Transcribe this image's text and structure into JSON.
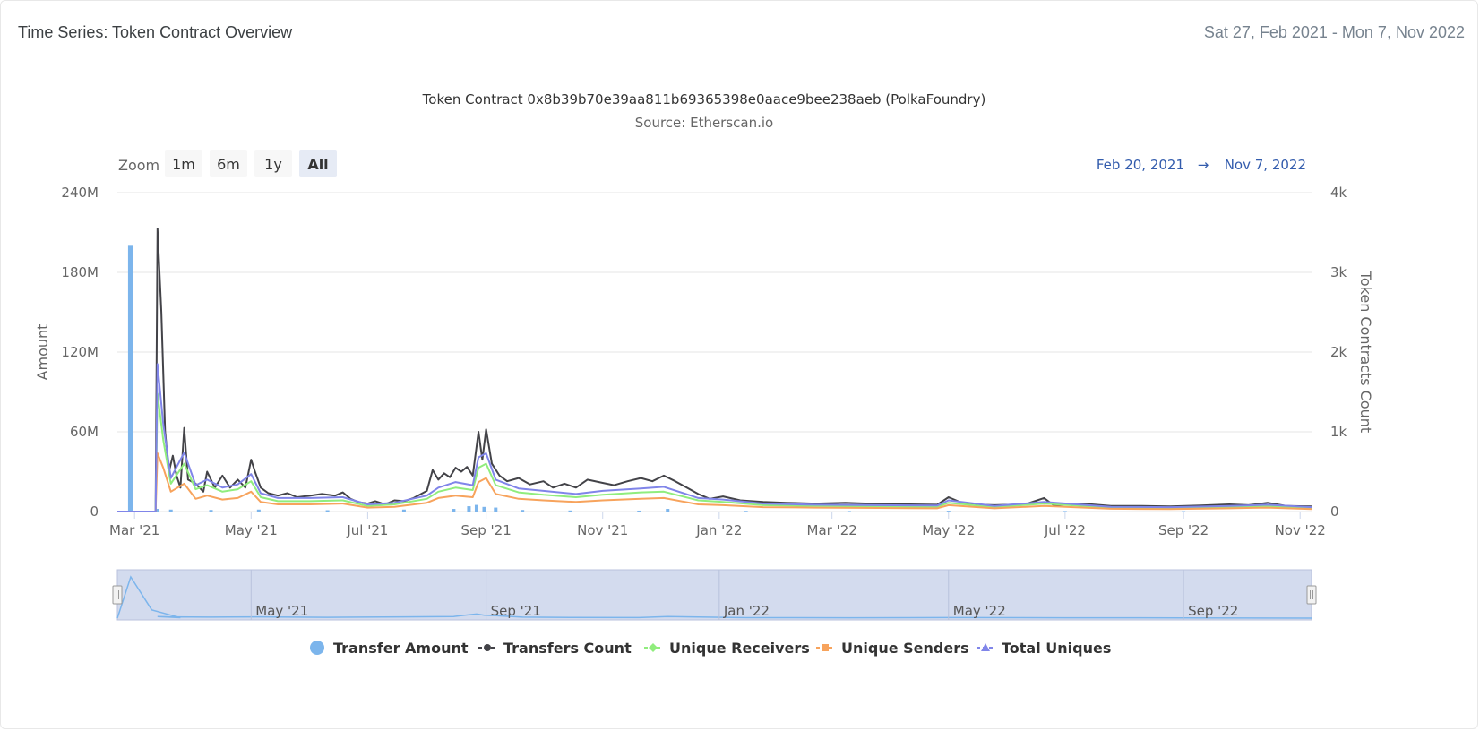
{
  "header": {
    "title": "Time Series: Token Contract Overview",
    "range": "Sat 27, Feb 2021 - Mon 7, Nov 2022"
  },
  "zoom": {
    "label": "Zoom",
    "buttons": [
      "1m",
      "6m",
      "1y",
      "All"
    ],
    "active": "All"
  },
  "range_selector": {
    "from": "Feb 20, 2021",
    "arrow": "→",
    "to": "Nov 7, 2022"
  },
  "navigator": {
    "labels": [
      "May '21",
      "Sep '21",
      "Jan '22",
      "May '22",
      "Sep '22"
    ]
  },
  "colors": {
    "transfer_amount": "#7cb5ec",
    "transfers_count": "#434348",
    "unique_receivers": "#90ed7d",
    "unique_senders": "#f7a35c",
    "total_uniques": "#8085e9",
    "navigator_fill": "#d3dbee"
  },
  "chart_data": {
    "type": "line",
    "title": "Token Contract 0x8b39b70e39aa811b69365398e0aace9bee238aeb (PolkaFoundry)",
    "subtitle": "Source: Etherscan.io",
    "x_range": [
      "2021-02-20",
      "2022-11-07"
    ],
    "x_ticks": [
      {
        "date": "2021-03-01",
        "label": "Mar '21"
      },
      {
        "date": "2021-05-01",
        "label": "May '21"
      },
      {
        "date": "2021-07-01",
        "label": "Jul '21"
      },
      {
        "date": "2021-09-01",
        "label": "Sep '21"
      },
      {
        "date": "2021-11-01",
        "label": "Nov '21"
      },
      {
        "date": "2022-01-01",
        "label": "Jan '22"
      },
      {
        "date": "2022-03-01",
        "label": "Mar '22"
      },
      {
        "date": "2022-05-01",
        "label": "May '22"
      },
      {
        "date": "2022-07-01",
        "label": "Jul '22"
      },
      {
        "date": "2022-09-01",
        "label": "Sep '22"
      },
      {
        "date": "2022-11-01",
        "label": "Nov '22"
      }
    ],
    "y_left": {
      "title": "Amount",
      "range": [
        0,
        240000000
      ],
      "ticks": [
        0,
        60000000,
        120000000,
        180000000,
        240000000
      ],
      "tick_labels": [
        "0",
        "60M",
        "120M",
        "180M",
        "240M"
      ]
    },
    "y_right": {
      "title": "Token Contracts Count",
      "range": [
        0,
        4000
      ],
      "ticks": [
        0,
        1000,
        2000,
        3000,
        4000
      ],
      "tick_labels": [
        "0",
        "1k",
        "2k",
        "3k",
        "4k"
      ]
    },
    "grid": true,
    "legend_position": "bottom-center",
    "series": [
      {
        "name": "Transfer Amount",
        "type": "column",
        "axis": "left",
        "color": "#7cb5ec",
        "points": [
          [
            "2021-02-27",
            200000000
          ],
          [
            "2021-03-13",
            2000000
          ],
          [
            "2021-03-20",
            1500000
          ],
          [
            "2021-04-10",
            1200000
          ],
          [
            "2021-05-05",
            1500000
          ],
          [
            "2021-06-10",
            1000000
          ],
          [
            "2021-07-20",
            1500000
          ],
          [
            "2021-08-15",
            2000000
          ],
          [
            "2021-08-23",
            4000000
          ],
          [
            "2021-08-27",
            5000000
          ],
          [
            "2021-08-31",
            3500000
          ],
          [
            "2021-09-06",
            3000000
          ],
          [
            "2021-09-20",
            1200000
          ],
          [
            "2021-10-15",
            800000
          ],
          [
            "2021-11-20",
            700000
          ],
          [
            "2021-12-05",
            2000000
          ],
          [
            "2022-01-15",
            500000
          ],
          [
            "2022-03-10",
            400000
          ],
          [
            "2022-05-01",
            600000
          ],
          [
            "2022-07-01",
            400000
          ],
          [
            "2022-09-01",
            300000
          ]
        ]
      },
      {
        "name": "Transfers Count",
        "type": "line",
        "axis": "right",
        "color": "#434348",
        "points": [
          [
            "2021-02-20",
            0
          ],
          [
            "2021-03-12",
            0
          ],
          [
            "2021-03-13",
            3550
          ],
          [
            "2021-03-15",
            2500
          ],
          [
            "2021-03-17",
            1000
          ],
          [
            "2021-03-19",
            500
          ],
          [
            "2021-03-21",
            700
          ],
          [
            "2021-03-23",
            450
          ],
          [
            "2021-03-25",
            300
          ],
          [
            "2021-03-27",
            1050
          ],
          [
            "2021-03-29",
            400
          ],
          [
            "2021-04-02",
            350
          ],
          [
            "2021-04-06",
            250
          ],
          [
            "2021-04-08",
            500
          ],
          [
            "2021-04-12",
            300
          ],
          [
            "2021-04-16",
            450
          ],
          [
            "2021-04-20",
            300
          ],
          [
            "2021-04-24",
            400
          ],
          [
            "2021-04-28",
            300
          ],
          [
            "2021-05-01",
            650
          ],
          [
            "2021-05-03",
            500
          ],
          [
            "2021-05-06",
            300
          ],
          [
            "2021-05-10",
            230
          ],
          [
            "2021-05-15",
            200
          ],
          [
            "2021-05-20",
            230
          ],
          [
            "2021-05-25",
            180
          ],
          [
            "2021-06-01",
            200
          ],
          [
            "2021-06-07",
            220
          ],
          [
            "2021-06-14",
            200
          ],
          [
            "2021-06-18",
            240
          ],
          [
            "2021-06-22",
            160
          ],
          [
            "2021-06-26",
            120
          ],
          [
            "2021-07-01",
            100
          ],
          [
            "2021-07-05",
            130
          ],
          [
            "2021-07-10",
            90
          ],
          [
            "2021-07-15",
            140
          ],
          [
            "2021-07-20",
            130
          ],
          [
            "2021-07-25",
            170
          ],
          [
            "2021-08-01",
            260
          ],
          [
            "2021-08-04",
            520
          ],
          [
            "2021-08-07",
            400
          ],
          [
            "2021-08-10",
            480
          ],
          [
            "2021-08-13",
            430
          ],
          [
            "2021-08-16",
            550
          ],
          [
            "2021-08-19",
            500
          ],
          [
            "2021-08-22",
            560
          ],
          [
            "2021-08-25",
            450
          ],
          [
            "2021-08-28",
            1000
          ],
          [
            "2021-08-30",
            650
          ],
          [
            "2021-09-01",
            1030
          ],
          [
            "2021-09-04",
            600
          ],
          [
            "2021-09-08",
            450
          ],
          [
            "2021-09-12",
            380
          ],
          [
            "2021-09-18",
            420
          ],
          [
            "2021-09-24",
            340
          ],
          [
            "2021-10-01",
            380
          ],
          [
            "2021-10-06",
            300
          ],
          [
            "2021-10-12",
            350
          ],
          [
            "2021-10-18",
            300
          ],
          [
            "2021-10-24",
            400
          ],
          [
            "2021-11-01",
            360
          ],
          [
            "2021-11-07",
            330
          ],
          [
            "2021-11-14",
            380
          ],
          [
            "2021-11-21",
            420
          ],
          [
            "2021-11-27",
            380
          ],
          [
            "2021-12-03",
            450
          ],
          [
            "2021-12-09",
            380
          ],
          [
            "2021-12-15",
            300
          ],
          [
            "2021-12-21",
            220
          ],
          [
            "2021-12-27",
            160
          ],
          [
            "2022-01-03",
            190
          ],
          [
            "2022-01-12",
            140
          ],
          [
            "2022-01-24",
            120
          ],
          [
            "2022-02-05",
            110
          ],
          [
            "2022-02-20",
            100
          ],
          [
            "2022-03-08",
            110
          ],
          [
            "2022-03-25",
            95
          ],
          [
            "2022-04-10",
            90
          ],
          [
            "2022-04-25",
            85
          ],
          [
            "2022-05-01",
            180
          ],
          [
            "2022-05-10",
            90
          ],
          [
            "2022-05-25",
            80
          ],
          [
            "2022-06-10",
            90
          ],
          [
            "2022-06-20",
            170
          ],
          [
            "2022-06-25",
            80
          ],
          [
            "2022-07-10",
            100
          ],
          [
            "2022-07-25",
            70
          ],
          [
            "2022-08-10",
            70
          ],
          [
            "2022-08-25",
            65
          ],
          [
            "2022-09-10",
            75
          ],
          [
            "2022-09-25",
            90
          ],
          [
            "2022-10-05",
            80
          ],
          [
            "2022-10-15",
            110
          ],
          [
            "2022-10-25",
            70
          ],
          [
            "2022-11-07",
            65
          ]
        ]
      },
      {
        "name": "Unique Receivers",
        "type": "line",
        "axis": "right",
        "color": "#90ed7d",
        "points": [
          [
            "2021-02-20",
            0
          ],
          [
            "2021-03-12",
            0
          ],
          [
            "2021-03-13",
            1480
          ],
          [
            "2021-03-16",
            900
          ],
          [
            "2021-03-20",
            350
          ],
          [
            "2021-03-27",
            600
          ],
          [
            "2021-04-02",
            280
          ],
          [
            "2021-04-08",
            330
          ],
          [
            "2021-04-16",
            250
          ],
          [
            "2021-04-24",
            280
          ],
          [
            "2021-05-01",
            380
          ],
          [
            "2021-05-06",
            180
          ],
          [
            "2021-05-15",
            130
          ],
          [
            "2021-06-01",
            130
          ],
          [
            "2021-06-18",
            140
          ],
          [
            "2021-07-01",
            70
          ],
          [
            "2021-07-15",
            90
          ],
          [
            "2021-08-01",
            160
          ],
          [
            "2021-08-07",
            250
          ],
          [
            "2021-08-16",
            300
          ],
          [
            "2021-08-25",
            270
          ],
          [
            "2021-08-28",
            550
          ],
          [
            "2021-09-01",
            600
          ],
          [
            "2021-09-06",
            330
          ],
          [
            "2021-09-18",
            240
          ],
          [
            "2021-10-01",
            210
          ],
          [
            "2021-10-18",
            180
          ],
          [
            "2021-11-01",
            210
          ],
          [
            "2021-11-21",
            240
          ],
          [
            "2021-12-03",
            250
          ],
          [
            "2021-12-21",
            140
          ],
          [
            "2022-01-03",
            120
          ],
          [
            "2022-01-24",
            80
          ],
          [
            "2022-02-20",
            70
          ],
          [
            "2022-03-25",
            65
          ],
          [
            "2022-04-25",
            60
          ],
          [
            "2022-05-01",
            110
          ],
          [
            "2022-05-25",
            55
          ],
          [
            "2022-06-20",
            100
          ],
          [
            "2022-07-25",
            50
          ],
          [
            "2022-08-25",
            45
          ],
          [
            "2022-09-25",
            60
          ],
          [
            "2022-10-15",
            70
          ],
          [
            "2022-11-07",
            45
          ]
        ]
      },
      {
        "name": "Unique Senders",
        "type": "line",
        "axis": "right",
        "color": "#f7a35c",
        "points": [
          [
            "2021-02-20",
            0
          ],
          [
            "2021-03-12",
            0
          ],
          [
            "2021-03-13",
            730
          ],
          [
            "2021-03-16",
            550
          ],
          [
            "2021-03-20",
            250
          ],
          [
            "2021-03-27",
            350
          ],
          [
            "2021-04-02",
            160
          ],
          [
            "2021-04-08",
            200
          ],
          [
            "2021-04-16",
            150
          ],
          [
            "2021-04-24",
            170
          ],
          [
            "2021-05-01",
            250
          ],
          [
            "2021-05-06",
            120
          ],
          [
            "2021-05-15",
            90
          ],
          [
            "2021-06-01",
            90
          ],
          [
            "2021-06-18",
            100
          ],
          [
            "2021-07-01",
            50
          ],
          [
            "2021-07-15",
            60
          ],
          [
            "2021-08-01",
            110
          ],
          [
            "2021-08-07",
            170
          ],
          [
            "2021-08-16",
            200
          ],
          [
            "2021-08-25",
            180
          ],
          [
            "2021-08-28",
            370
          ],
          [
            "2021-09-01",
            420
          ],
          [
            "2021-09-06",
            220
          ],
          [
            "2021-09-18",
            160
          ],
          [
            "2021-10-01",
            140
          ],
          [
            "2021-10-18",
            120
          ],
          [
            "2021-11-01",
            140
          ],
          [
            "2021-11-21",
            160
          ],
          [
            "2021-12-03",
            170
          ],
          [
            "2021-12-21",
            90
          ],
          [
            "2022-01-03",
            80
          ],
          [
            "2022-01-24",
            55
          ],
          [
            "2022-02-20",
            50
          ],
          [
            "2022-03-25",
            45
          ],
          [
            "2022-04-25",
            40
          ],
          [
            "2022-05-01",
            80
          ],
          [
            "2022-05-25",
            40
          ],
          [
            "2022-06-20",
            70
          ],
          [
            "2022-07-25",
            35
          ],
          [
            "2022-08-25",
            30
          ],
          [
            "2022-09-25",
            40
          ],
          [
            "2022-10-15",
            50
          ],
          [
            "2022-11-07",
            30
          ]
        ]
      },
      {
        "name": "Total Uniques",
        "type": "line",
        "axis": "right",
        "color": "#8085e9",
        "points": [
          [
            "2021-02-20",
            0
          ],
          [
            "2021-03-12",
            0
          ],
          [
            "2021-03-13",
            1850
          ],
          [
            "2021-03-16",
            1100
          ],
          [
            "2021-03-20",
            420
          ],
          [
            "2021-03-27",
            740
          ],
          [
            "2021-04-02",
            330
          ],
          [
            "2021-04-08",
            400
          ],
          [
            "2021-04-16",
            300
          ],
          [
            "2021-04-24",
            340
          ],
          [
            "2021-05-01",
            470
          ],
          [
            "2021-05-06",
            230
          ],
          [
            "2021-05-15",
            170
          ],
          [
            "2021-06-01",
            170
          ],
          [
            "2021-06-18",
            180
          ],
          [
            "2021-07-01",
            90
          ],
          [
            "2021-07-15",
            110
          ],
          [
            "2021-08-01",
            200
          ],
          [
            "2021-08-07",
            300
          ],
          [
            "2021-08-16",
            370
          ],
          [
            "2021-08-25",
            330
          ],
          [
            "2021-08-28",
            680
          ],
          [
            "2021-09-01",
            730
          ],
          [
            "2021-09-06",
            400
          ],
          [
            "2021-09-18",
            290
          ],
          [
            "2021-10-01",
            260
          ],
          [
            "2021-10-18",
            220
          ],
          [
            "2021-11-01",
            260
          ],
          [
            "2021-11-21",
            290
          ],
          [
            "2021-12-03",
            310
          ],
          [
            "2021-12-21",
            170
          ],
          [
            "2022-01-03",
            150
          ],
          [
            "2022-01-24",
            100
          ],
          [
            "2022-02-20",
            85
          ],
          [
            "2022-03-25",
            80
          ],
          [
            "2022-04-25",
            75
          ],
          [
            "2022-05-01",
            140
          ],
          [
            "2022-05-25",
            70
          ],
          [
            "2022-06-20",
            120
          ],
          [
            "2022-07-25",
            60
          ],
          [
            "2022-08-25",
            55
          ],
          [
            "2022-09-25",
            70
          ],
          [
            "2022-10-15",
            85
          ],
          [
            "2022-11-07",
            55
          ]
        ]
      }
    ]
  }
}
